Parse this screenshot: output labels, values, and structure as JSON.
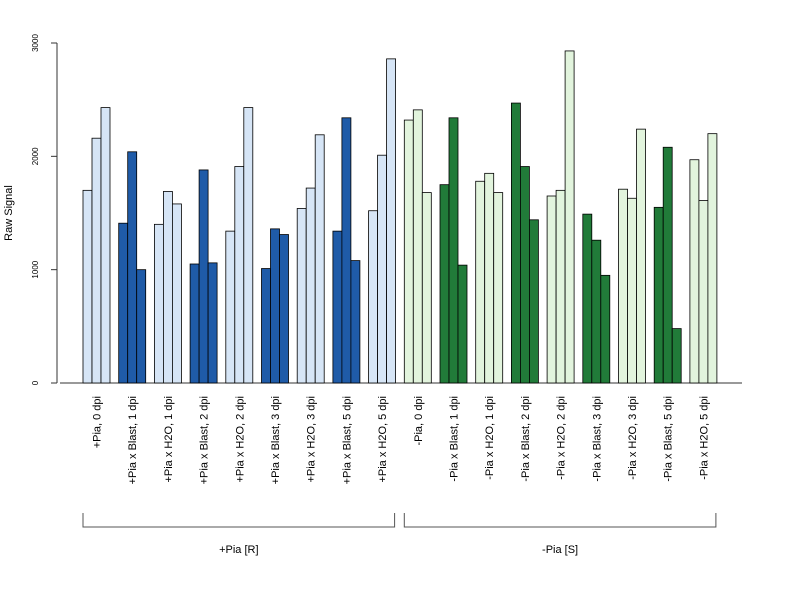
{
  "chart_data": {
    "type": "bar",
    "ylabel": "Raw Signal",
    "ylim": [
      0,
      3000
    ],
    "yticks": [
      "0",
      "1000",
      "2000",
      "3000"
    ],
    "grid": false,
    "categories": [
      "+Pia, 0 dpi",
      "+Pia x Blast, 1 dpi",
      "+Pia x H2O, 1 dpi",
      "+Pia x Blast, 2 dpi",
      "+Pia x H2O, 2 dpi",
      "+Pia x Blast, 3 dpi",
      "+Pia x H2O, 3 dpi",
      "+Pia x Blast, 5 dpi",
      "+Pia x H2O, 5 dpi",
      "-Pia, 0 dpi",
      "-Pia x Blast, 1 dpi",
      "-Pia x H2O, 1 dpi",
      "-Pia x Blast, 2 dpi",
      "-Pia x H2O, 2 dpi",
      "-Pia x Blast, 3 dpi",
      "-Pia x H2O, 3 dpi",
      "-Pia x Blast, 5 dpi",
      "-Pia x H2O, 5 dpi"
    ],
    "replicate_values": [
      [
        1700,
        2160,
        2430
      ],
      [
        1410,
        2040,
        1000
      ],
      [
        1400,
        1690,
        1580
      ],
      [
        1050,
        1880,
        1060
      ],
      [
        1340,
        1910,
        2430
      ],
      [
        1010,
        1360,
        1310
      ],
      [
        1540,
        1720,
        2190
      ],
      [
        1340,
        2340,
        1080
      ],
      [
        1520,
        2010,
        2860
      ],
      [
        2320,
        2410,
        1680
      ],
      [
        1750,
        2340,
        1040
      ],
      [
        1780,
        1850,
        1680
      ],
      [
        2470,
        1910,
        1440
      ],
      [
        1650,
        1700,
        2930
      ],
      [
        1490,
        1260,
        950
      ],
      [
        1710,
        1630,
        2240
      ],
      [
        1550,
        2080,
        480
      ],
      [
        1970,
        1610,
        2200
      ]
    ],
    "groups": [
      {
        "label": "+Pia [R]",
        "start": 0,
        "end": 8
      },
      {
        "label": "-Pia [S]",
        "start": 9,
        "end": 17
      }
    ],
    "colors": {
      "pia_plus_light": "#d6e5f6",
      "pia_plus_dark": "#1f5ba8",
      "pia_minus_light": "#e2f4dd",
      "pia_minus_dark": "#217b39",
      "bar_stroke": "#000000"
    }
  }
}
